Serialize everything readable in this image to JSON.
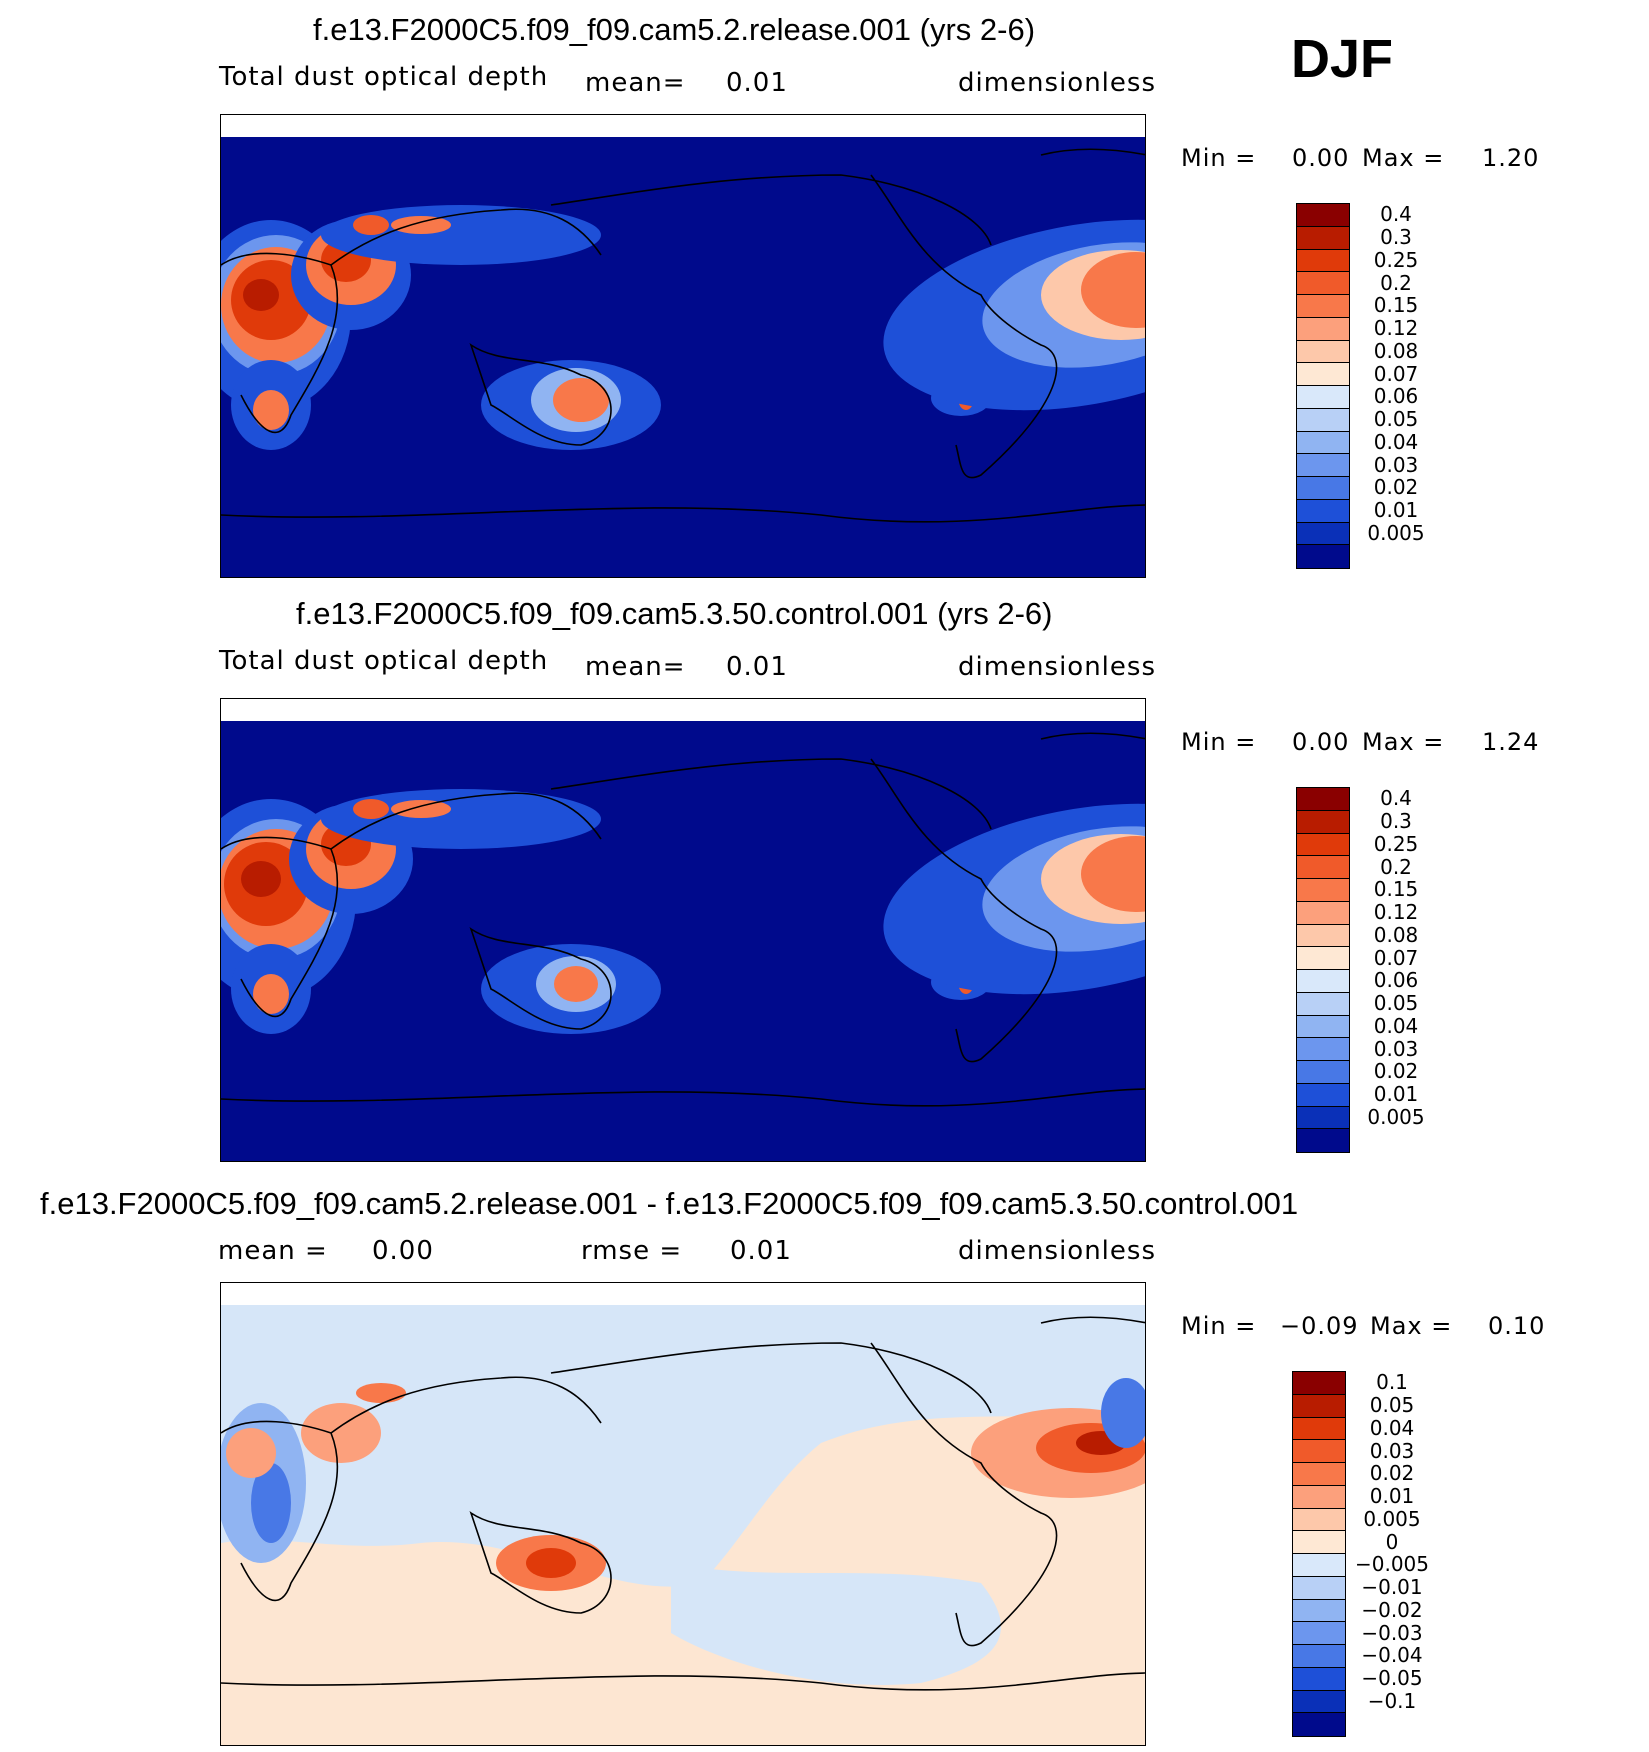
{
  "season": "DJF",
  "panels": [
    {
      "title": "f.e13.F2000C5.f09_f09.cam5.2.release.001 (yrs 2-6)",
      "variable": "Total dust optical depth",
      "stat1_label": "mean=",
      "stat1_value": "0.01",
      "units": "dimensionless",
      "min_label": "Min =",
      "min_value": "0.00",
      "max_label": "Max =",
      "max_value": "1.20",
      "kind": "field"
    },
    {
      "title": "f.e13.F2000C5.f09_f09.cam5.3.50.control.001 (yrs 2-6)",
      "variable": "Total dust optical depth",
      "stat1_label": "mean=",
      "stat1_value": "0.01",
      "units": "dimensionless",
      "min_label": "Min =",
      "min_value": "0.00",
      "max_label": "Max =",
      "max_value": "1.24",
      "kind": "field"
    },
    {
      "title": "f.e13.F2000C5.f09_f09.cam5.2.release.001 - f.e13.F2000C5.f09_f09.cam5.3.50.control.001",
      "stat1_label": "mean =",
      "stat1_value": "0.00",
      "stat2_label": "rmse =",
      "stat2_value": "0.01",
      "units": "dimensionless",
      "min_label": "Min =",
      "min_value": "−0.09",
      "max_label": "Max =",
      "max_value": "0.10",
      "kind": "diff"
    }
  ],
  "colorbars": {
    "field": {
      "labels": [
        "0.4",
        "0.3",
        "0.25",
        "0.2",
        "0.15",
        "0.12",
        "0.08",
        "0.07",
        "0.06",
        "0.05",
        "0.04",
        "0.03",
        "0.02",
        "0.01",
        "0.005"
      ],
      "colors": [
        "#8a0000",
        "#b81c00",
        "#e03a0a",
        "#f05a2a",
        "#f8784a",
        "#fca07c",
        "#fdc8aa",
        "#fee8d4",
        "#d9e8fa",
        "#b8d0f6",
        "#90b4f2",
        "#6c96ee",
        "#4878e6",
        "#1e50d8",
        "#0a30b8",
        "#000a8c"
      ]
    },
    "diff": {
      "labels": [
        "0.1",
        "0.05",
        "0.04",
        "0.03",
        "0.02",
        "0.01",
        "0.005",
        "0",
        "−0.005",
        "−0.01",
        "−0.02",
        "−0.03",
        "−0.04",
        "−0.05",
        "−0.1"
      ],
      "colors": [
        "#8a0000",
        "#b81c00",
        "#e03a0a",
        "#f05a2a",
        "#f8784a",
        "#fca07c",
        "#fdc8aa",
        "#fee8d4",
        "#d9e8fa",
        "#b8d0f6",
        "#90b4f2",
        "#6c96ee",
        "#4878e6",
        "#1e50d8",
        "#0a30b8",
        "#000a8c"
      ]
    }
  },
  "map_colors": {
    "field_background": "#000a8c",
    "diff_background_neg": "#d6e6f8",
    "diff_background_pos": "#fde6d2"
  }
}
